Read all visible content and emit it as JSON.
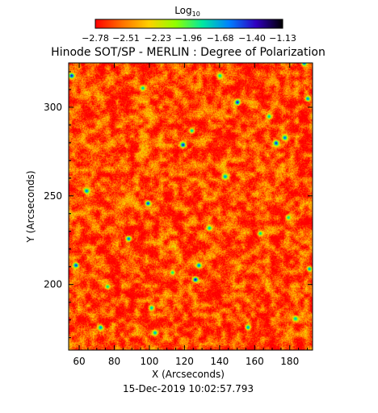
{
  "chart_data": {
    "type": "heatmap",
    "title": "Hinode SOT/SP - MERLIN : Degree of Polarization",
    "timestamp": "15-Dec-2019 10:02:57.793",
    "xlabel": "X (Arcseconds)",
    "ylabel": "Y (Arcseconds)",
    "xlim": [
      54,
      193
    ],
    "ylim": [
      163,
      325
    ],
    "x_ticks": [
      60,
      80,
      100,
      120,
      140,
      160,
      180
    ],
    "x_tick_labels": [
      "60",
      "80",
      "100",
      "120",
      "140",
      "160",
      "180"
    ],
    "y_ticks": [
      200,
      250,
      300
    ],
    "y_tick_labels": [
      "200",
      "250",
      "300"
    ],
    "colorbar": {
      "label_base": "Log",
      "label_sub": "10",
      "range": [
        -2.78,
        -1.13
      ],
      "tick_labels": [
        "−2.78",
        "−2.51",
        "−2.23",
        "−1.96",
        "−1.68",
        "−1.40",
        "−1.13"
      ],
      "tick_values": [
        -2.78,
        -2.51,
        -2.23,
        -1.96,
        -1.68,
        -1.4,
        -1.13
      ],
      "colors": [
        "#ff0000",
        "#ff7000",
        "#ffd000",
        "#90ff00",
        "#00e8a0",
        "#0080ff",
        "#3000c0",
        "#000000"
      ]
    },
    "base_level": -2.63,
    "features": [
      {
        "x": 55.5,
        "y": 318,
        "value": -1.35
      },
      {
        "x": 58,
        "y": 211,
        "value": -1.4
      },
      {
        "x": 64,
        "y": 253,
        "value": -1.55
      },
      {
        "x": 72,
        "y": 176,
        "value": -1.6
      },
      {
        "x": 76,
        "y": 199,
        "value": -1.75
      },
      {
        "x": 88,
        "y": 226,
        "value": -1.5
      },
      {
        "x": 96,
        "y": 311,
        "value": -1.7
      },
      {
        "x": 99,
        "y": 246,
        "value": -1.4
      },
      {
        "x": 101,
        "y": 187,
        "value": -1.7
      },
      {
        "x": 103,
        "y": 173,
        "value": -1.65
      },
      {
        "x": 113,
        "y": 207,
        "value": -1.8
      },
      {
        "x": 119,
        "y": 279,
        "value": -1.35
      },
      {
        "x": 124,
        "y": 287,
        "value": -1.7
      },
      {
        "x": 126,
        "y": 203,
        "value": -1.3
      },
      {
        "x": 128,
        "y": 211,
        "value": -1.55
      },
      {
        "x": 134,
        "y": 232,
        "value": -1.7
      },
      {
        "x": 140,
        "y": 318,
        "value": -1.75
      },
      {
        "x": 143,
        "y": 261,
        "value": -1.6
      },
      {
        "x": 150,
        "y": 303,
        "value": -1.35
      },
      {
        "x": 156,
        "y": 176,
        "value": -1.6
      },
      {
        "x": 163,
        "y": 229,
        "value": -1.75
      },
      {
        "x": 168,
        "y": 295,
        "value": -1.7
      },
      {
        "x": 172,
        "y": 280,
        "value": -1.4
      },
      {
        "x": 177,
        "y": 283,
        "value": -1.5
      },
      {
        "x": 179,
        "y": 238,
        "value": -1.75
      },
      {
        "x": 188,
        "y": 325,
        "value": -1.5
      },
      {
        "x": 190,
        "y": 305,
        "value": -1.55
      },
      {
        "x": 191,
        "y": 209,
        "value": -1.6
      },
      {
        "x": 183,
        "y": 181,
        "value": -1.7
      }
    ]
  }
}
